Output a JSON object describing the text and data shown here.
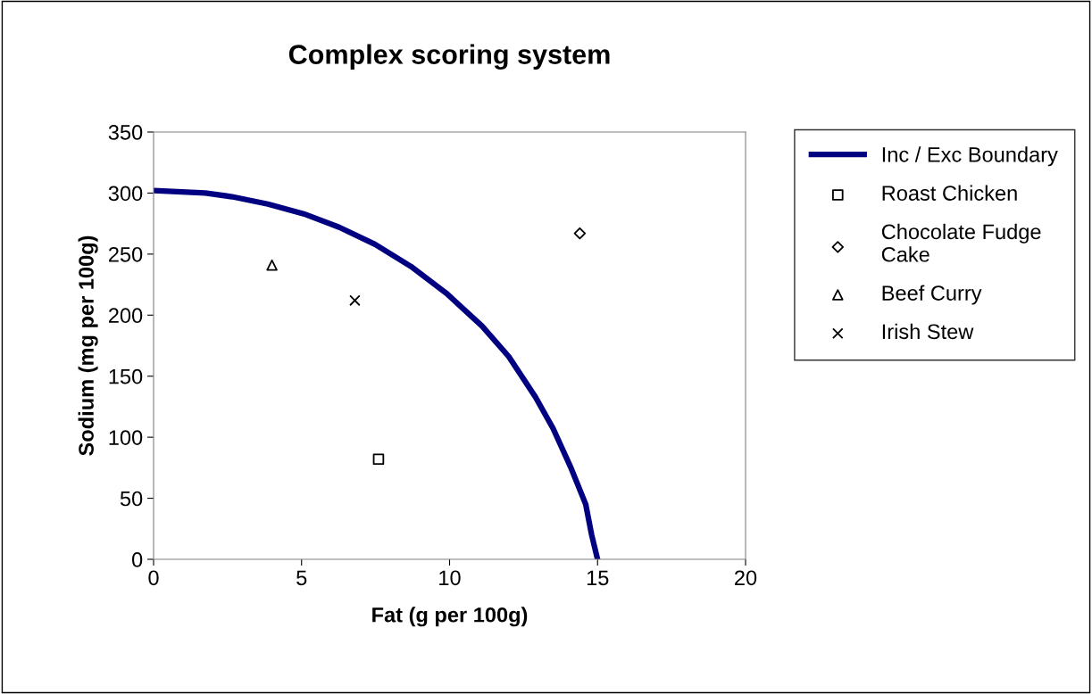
{
  "chart_data": {
    "type": "scatter",
    "title": "Complex scoring system",
    "xlabel": "Fat (g per 100g)",
    "ylabel": "Sodium (mg per 100g)",
    "xlim": [
      0,
      20
    ],
    "ylim": [
      0,
      350
    ],
    "xticks": [
      0,
      5,
      10,
      15,
      20
    ],
    "yticks": [
      0,
      50,
      100,
      150,
      200,
      250,
      300,
      350
    ],
    "grid": false,
    "legend": "right",
    "series": [
      {
        "name": "Inc / Exc Boundary",
        "type": "line",
        "color": "#000080",
        "marker": "none",
        "line_style": "solid",
        "x": [
          0,
          1.75,
          2.65,
          3.86,
          5.07,
          6.27,
          7.48,
          8.69,
          9.89,
          11.1,
          12.0,
          12.9,
          13.5,
          14.1,
          14.6,
          14.8,
          15.0
        ],
        "values": [
          302,
          300,
          297,
          291,
          283,
          272,
          258,
          240,
          218,
          191,
          166,
          133,
          107,
          75,
          45,
          20,
          0
        ]
      },
      {
        "name": "Roast Chicken",
        "color": "#000000",
        "marker": "square",
        "x": [
          7.6
        ],
        "values": [
          82
        ]
      },
      {
        "name": "Chocolate Fudge Cake",
        "color": "#000000",
        "marker": "diamond",
        "x": [
          14.4
        ],
        "values": [
          267
        ]
      },
      {
        "name": "Beef Curry",
        "color": "#000000",
        "marker": "triangle",
        "x": [
          4.0
        ],
        "values": [
          241
        ]
      },
      {
        "name": "Irish Stew",
        "color": "#000000",
        "marker": "cross",
        "x": [
          6.8
        ],
        "values": [
          212
        ]
      }
    ]
  }
}
